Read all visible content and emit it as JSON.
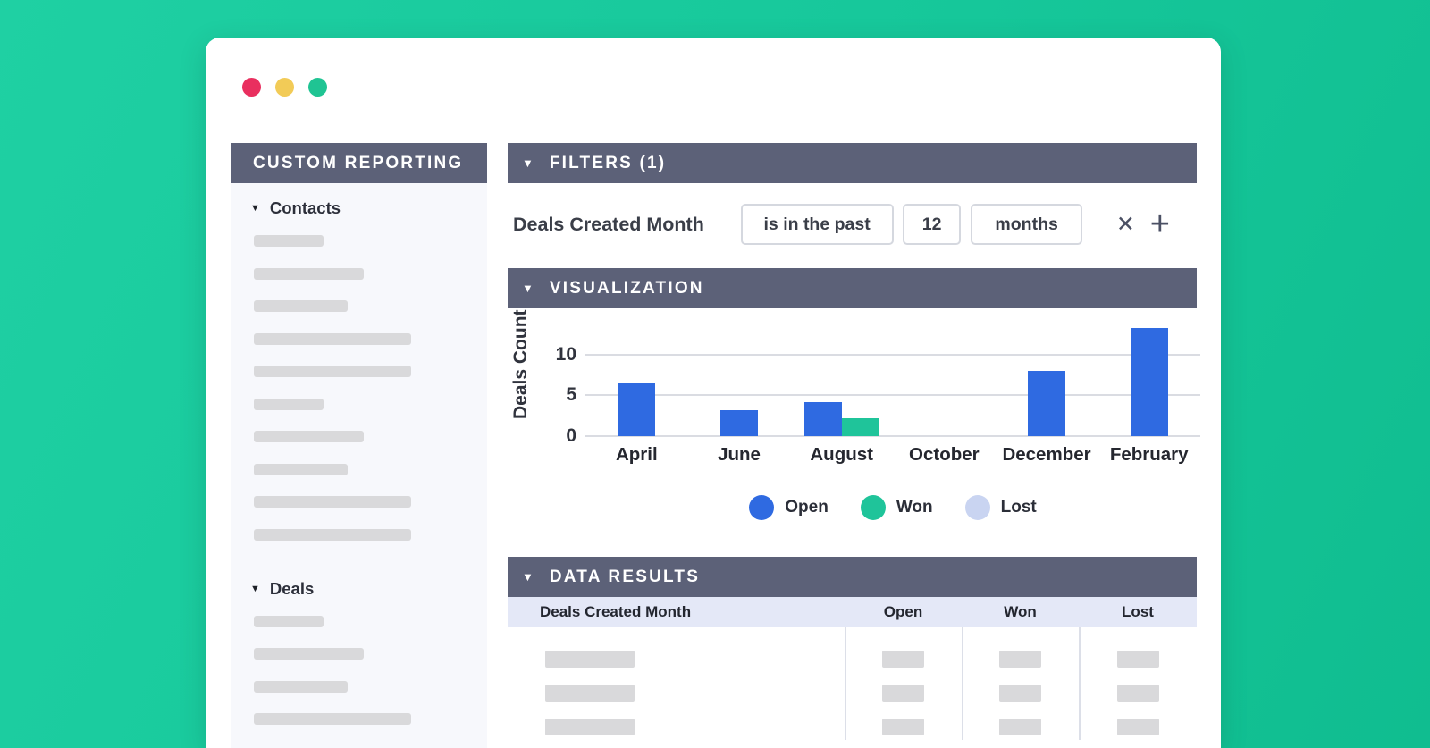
{
  "colors": {
    "background_teal": "#16c79a",
    "header_slate": "#5c6178",
    "bar_open_blue": "#2f6ae1",
    "bar_won_green": "#1fc49a",
    "lost_lavender": "#c9d4f1",
    "table_header_bg": "#e4e8f7",
    "placeholder_gray": "#d9d9db",
    "dot_close_red": "#e92f5f",
    "dot_minimize_yellow": "#f2cb57",
    "dot_maximize_green": "#1fc493"
  },
  "window": {
    "controls": [
      "close-dot",
      "minimize-dot",
      "maximize-dot"
    ]
  },
  "sidebar": {
    "title": "CUSTOM REPORTING",
    "collapse_icon": "▼",
    "sections": [
      {
        "label": "Contacts",
        "placeholder_bar_widths": [
          78,
          123,
          105,
          176,
          176,
          78,
          123,
          105,
          176,
          176
        ]
      },
      {
        "label": "Deals",
        "placeholder_bar_widths": [
          78,
          123,
          105,
          176
        ]
      }
    ]
  },
  "filters": {
    "title": "FILTERS (1)",
    "collapse_icon": "▼",
    "field_label": "Deals Created Month",
    "condition_value": "is in the past",
    "amount_value": "12",
    "unit_value": "months",
    "remove_icon": "✕",
    "add_icon": "+"
  },
  "visualization": {
    "title": "VISUALIZATION",
    "collapse_icon": "▼"
  },
  "chart_data": {
    "type": "bar",
    "title": "",
    "xlabel": "",
    "ylabel": "Deals Count",
    "categories": [
      "April",
      "June",
      "August",
      "October",
      "December",
      "February"
    ],
    "series": [
      {
        "name": "Open",
        "color": "#2f6ae1",
        "values": [
          6.5,
          3.2,
          4.2,
          0,
          8,
          13.2
        ]
      },
      {
        "name": "Won",
        "color": "#1fc49a",
        "values": [
          0,
          0,
          2.2,
          0,
          0,
          0
        ]
      },
      {
        "name": "Lost",
        "color": "#c9d4f1",
        "values": [
          0,
          0,
          0,
          0,
          0,
          0
        ]
      }
    ],
    "yticks": [
      0,
      5,
      10
    ],
    "ylim": [
      0,
      13.5
    ],
    "grid": true,
    "legend_position": "bottom"
  },
  "data_results": {
    "title": "DATA RESULTS",
    "collapse_icon": "▼",
    "columns": [
      "Deals Created Month",
      "Open",
      "Won",
      "Lost"
    ],
    "placeholder_row_count": 3
  }
}
